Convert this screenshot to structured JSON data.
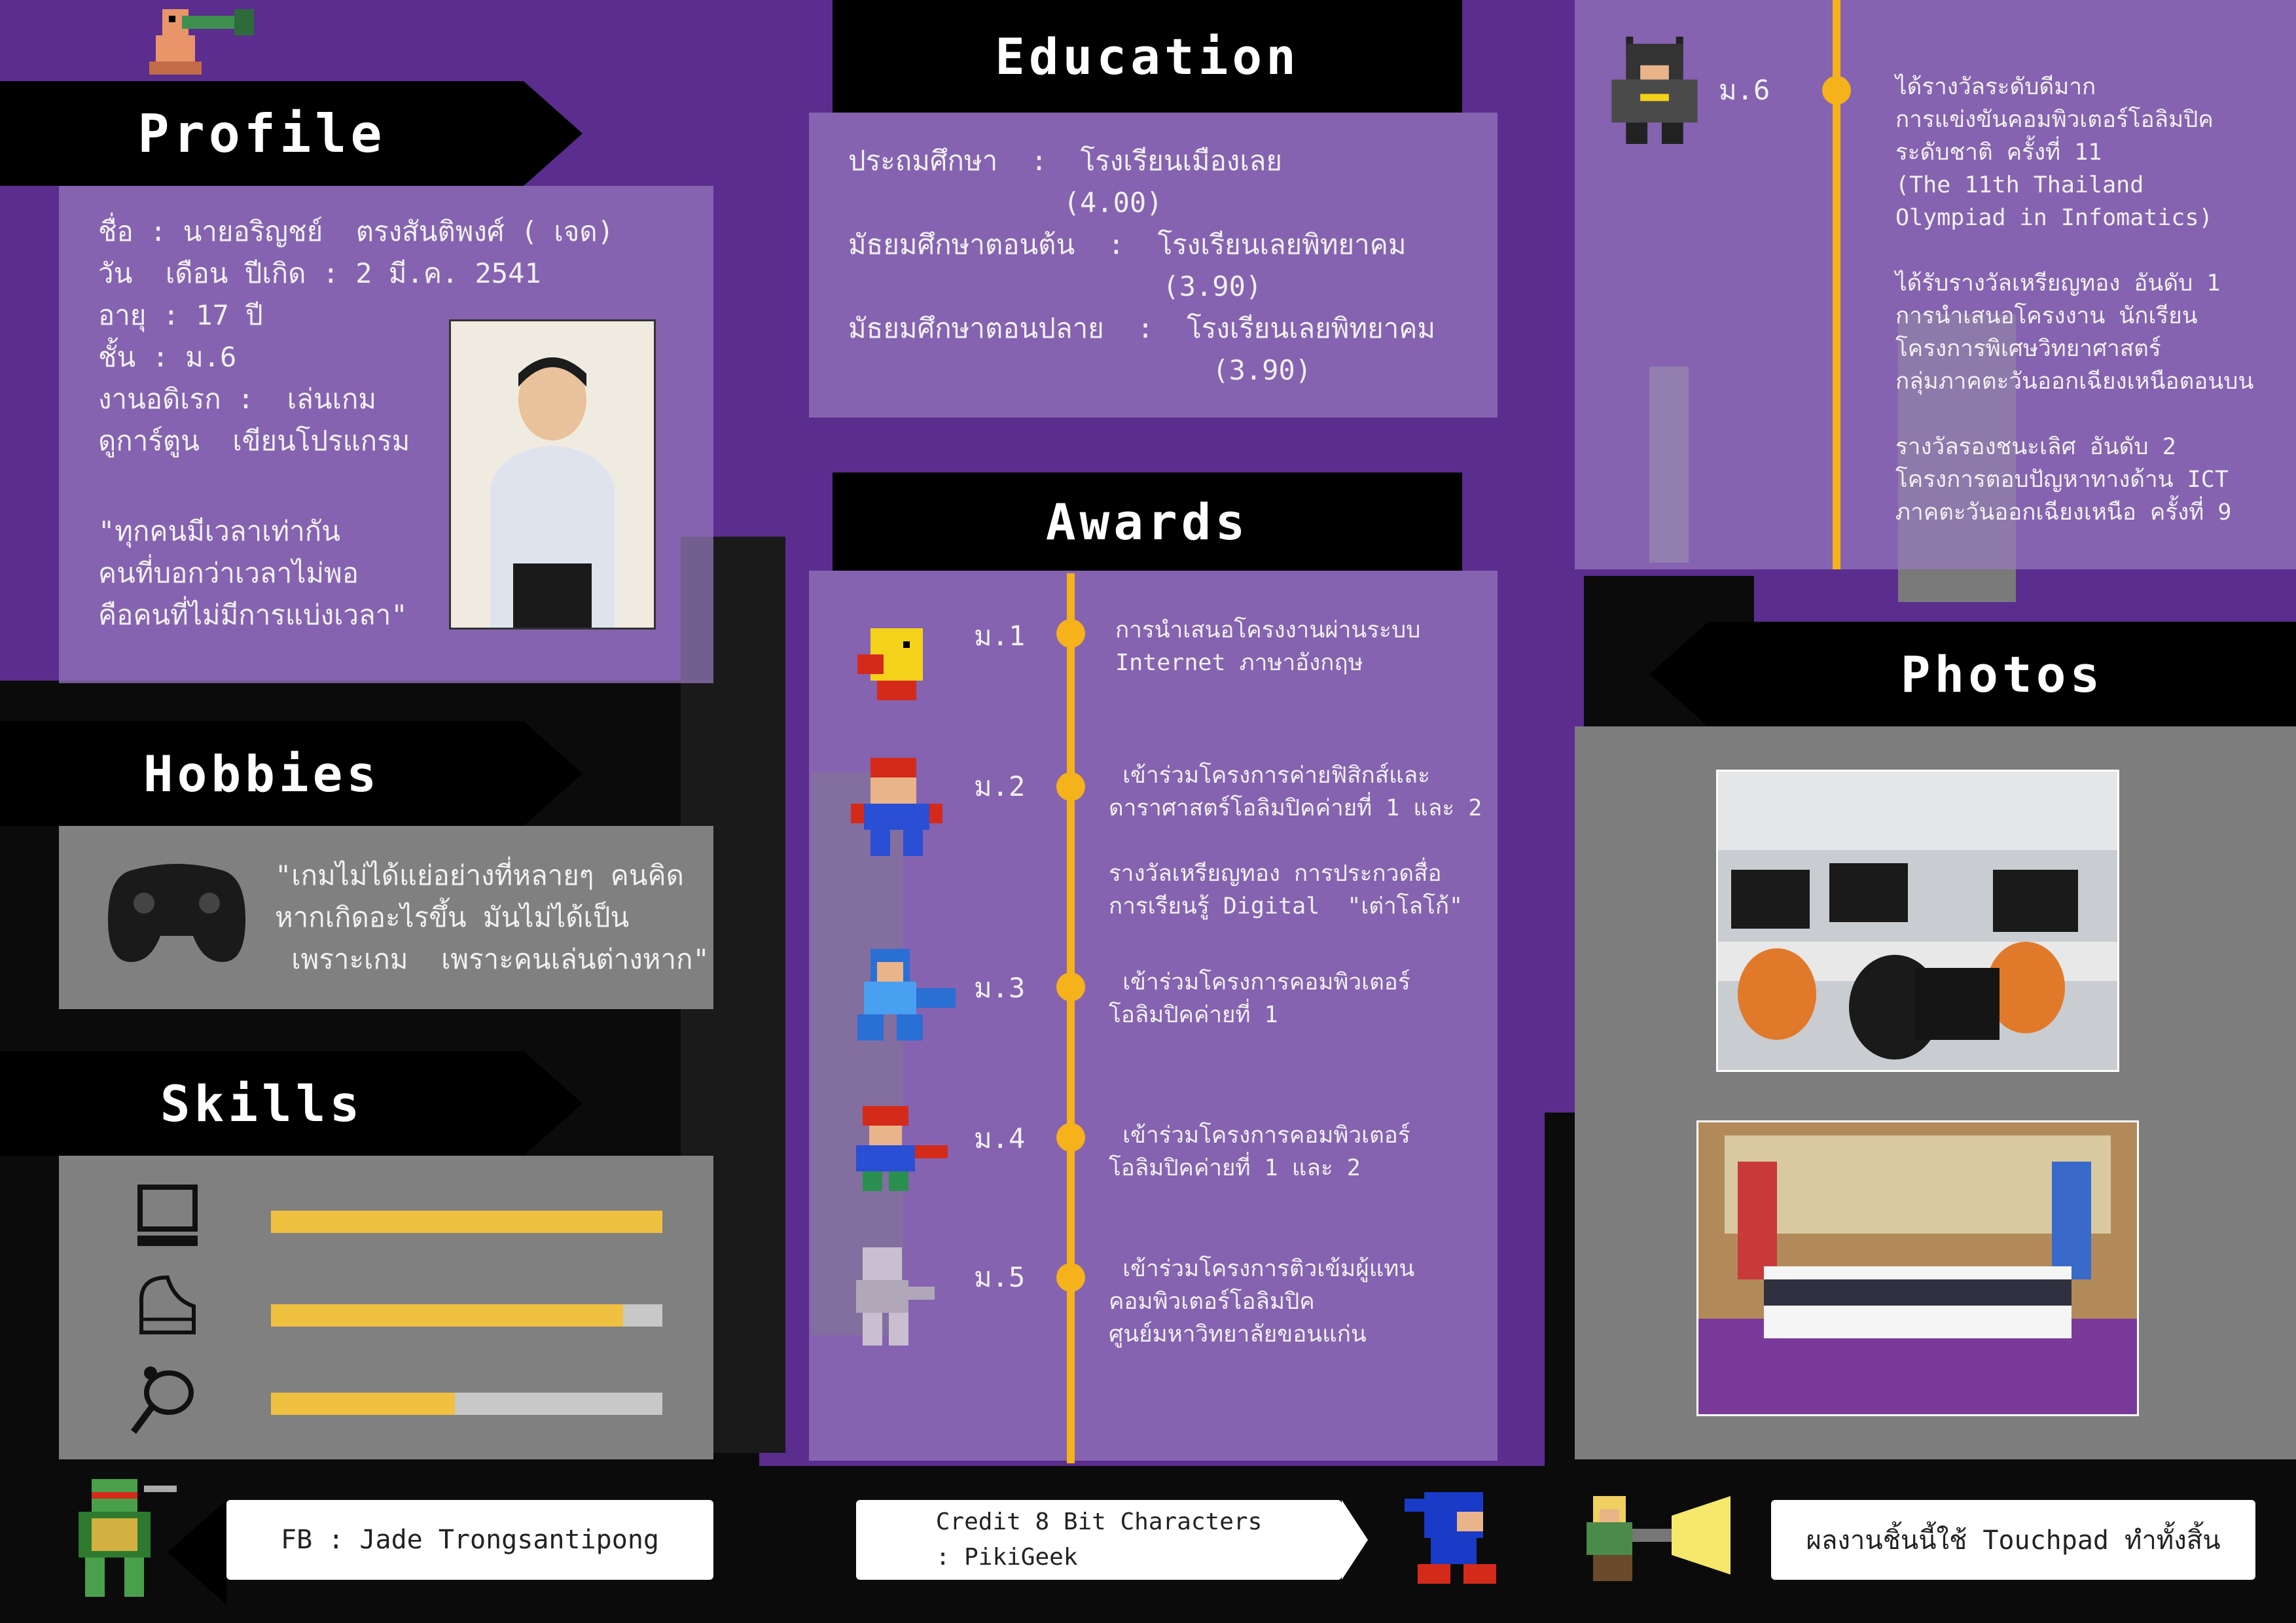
{
  "profile": {
    "title": "Profile",
    "lines": [
      "ชื่อ : นายอริญชย์  ตรงสันติพงศ์ ( เจด)",
      "วัน  เดือน ปีเกิด : 2 มี.ค. 2541",
      "อายุ : 17 ปี",
      "ชั้น : ม.6",
      "งานอดิเรก :  เล่นเกม",
      "ดูการ์ตูน  เขียนโปรแกรม"
    ],
    "quote": "\"ทุกคนมีเวลาเท่ากัน\nคนที่บอกว่าเวลาไม่พอ\nคือคนที่ไม่มีการแบ่งเวลา\""
  },
  "hobbies": {
    "title": "Hobbies",
    "icon": "gamepad-icon",
    "quote": "\"เกมไม่ได้แย่อย่างที่หลายๆ คนคิด\nหากเกิดอะไรขึ้น มันไม่ได้เป็น\n เพราะเกม  เพราะคนเล่นต่างหาก\""
  },
  "skills": {
    "title": "Skills",
    "items": [
      {
        "icon": "computer-icon",
        "level": 1.0
      },
      {
        "icon": "piano-icon",
        "level": 0.9
      },
      {
        "icon": "badminton-icon",
        "level": 0.47
      }
    ]
  },
  "education": {
    "title": "Education",
    "lines": [
      "ประถมศึกษา  :  โรงเรียนเมืองเลย",
      "             (4.00)",
      "มัธยมศึกษาตอนต้น  :  โรงเรียนเลยพิทยาคม",
      "                   (3.90)",
      "มัธยมศึกษาตอนปลาย  :  โรงเรียนเลยพิทยาคม",
      "                      (3.90)"
    ]
  },
  "awards": {
    "title": "Awards",
    "items": [
      {
        "grade": "ม.1",
        "text": "การนำเสนอโครงงานผ่านระบบ\nInternet ภาษาอังกฤษ"
      },
      {
        "grade": "ม.2",
        "text": " เข้าร่วมโครงการค่ายฟิสิกส์และ\nดาราศาสตร์โอลิมปิคค่ายที่ 1 และ 2\n\nรางวัลเหรียญทอง การประกวดสื่อ\nการเรียนรู้ Digital  \"เต่าโลโก้\""
      },
      {
        "grade": "ม.3",
        "text": " เข้าร่วมโครงการคอมพิวเตอร์\nโอลิมปิคค่ายที่ 1"
      },
      {
        "grade": "ม.4",
        "text": " เข้าร่วมโครงการคอมพิวเตอร์\nโอลิมปิคค่ายที่ 1 และ 2"
      },
      {
        "grade": "ม.5",
        "text": " เข้าร่วมโครงการติวเข้มผู้แทน\nคอมพิวเตอร์โอลิมปิค\nศูนย์มหาวิทยาลัยขอนแก่น"
      }
    ]
  },
  "grade6": {
    "grade": "ม.6",
    "text": "ได้รางวัลระดับดีมาก\nการแข่งขันคอมพิวเตอร์โอลิมปิค\nระดับชาติ ครั้งที่ 11\n(The 11th Thailand\nOlympiad in Infomatics)\n\nได้รับรางวัลเหรียญทอง อันดับ 1\nการนำเสนอโครงงาน นักเรียน\nโครงการพิเศษวิทยาศาสตร์\nกลุ่มภาคตะวันออกเฉียงเหนือตอนบน\n\nรางวัลรองชนะเลิศ อันดับ 2\nโครงการตอบปัญหาทางด้าน ICT\nภาคตะวันออกเฉียงเหนือ ครั้งที่ 9"
  },
  "photos": {
    "title": "Photos"
  },
  "footer": {
    "fb": "FB : Jade Trongsantipong",
    "credit": "Credit 8 Bit Characters\n: PikiGeek",
    "note": "ผลงานชิ้นนี้ใช้ Touchpad ทำทั้งสิ้น"
  },
  "colors": {
    "purple": "#5b2d8e",
    "panel": "#9678be",
    "gray": "#7d7d7d",
    "accent": "#f5b21a",
    "bar": "#f0c040"
  }
}
